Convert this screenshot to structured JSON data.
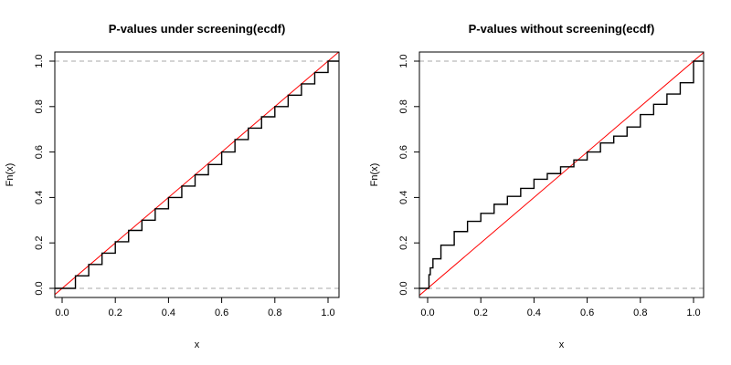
{
  "chart_data": [
    {
      "type": "line",
      "title": "P-values under screening(ecdf)",
      "xlabel": "x",
      "ylabel": "Fn(x)",
      "xlim": [
        0,
        1
      ],
      "ylim": [
        0,
        1
      ],
      "xticks": [
        "0.0",
        "0.2",
        "0.4",
        "0.6",
        "0.8",
        "1.0"
      ],
      "yticks": [
        "0.0",
        "0.2",
        "0.4",
        "0.6",
        "0.8",
        "1.0"
      ],
      "reference_lines": [
        {
          "kind": "horizontal",
          "y": 0,
          "style": "dashed",
          "color": "#aaaaaa"
        },
        {
          "kind": "horizontal",
          "y": 1,
          "style": "dashed",
          "color": "#aaaaaa"
        },
        {
          "kind": "diagonal",
          "slope": 1,
          "intercept": 0,
          "color": "#ff0000"
        }
      ],
      "series": [
        {
          "type": "step",
          "color": "#000000",
          "x": [
            0.0,
            0.05,
            0.1,
            0.15,
            0.2,
            0.25,
            0.3,
            0.35,
            0.4,
            0.45,
            0.5,
            0.55,
            0.6,
            0.65,
            0.7,
            0.75,
            0.8,
            0.85,
            0.9,
            0.95,
            1.0
          ],
          "y": [
            0.0,
            0.055,
            0.105,
            0.155,
            0.205,
            0.255,
            0.3,
            0.35,
            0.4,
            0.45,
            0.5,
            0.545,
            0.6,
            0.655,
            0.705,
            0.755,
            0.8,
            0.85,
            0.9,
            0.95,
            1.0
          ]
        }
      ]
    },
    {
      "type": "line",
      "title": "P-values without screening(ecdf)",
      "xlabel": "x",
      "ylabel": "Fn(x)",
      "xlim": [
        0,
        1
      ],
      "ylim": [
        0,
        1
      ],
      "xticks": [
        "0.0",
        "0.2",
        "0.4",
        "0.6",
        "0.8",
        "1.0"
      ],
      "yticks": [
        "0.0",
        "0.2",
        "0.4",
        "0.6",
        "0.8",
        "1.0"
      ],
      "reference_lines": [
        {
          "kind": "horizontal",
          "y": 0,
          "style": "dashed",
          "color": "#aaaaaa"
        },
        {
          "kind": "horizontal",
          "y": 1,
          "style": "dashed",
          "color": "#aaaaaa"
        },
        {
          "kind": "diagonal",
          "slope": 1,
          "intercept": 0,
          "color": "#ff0000"
        }
      ],
      "series": [
        {
          "type": "step",
          "color": "#000000",
          "x": [
            0.0,
            0.005,
            0.01,
            0.02,
            0.05,
            0.1,
            0.15,
            0.2,
            0.25,
            0.3,
            0.35,
            0.4,
            0.45,
            0.5,
            0.55,
            0.6,
            0.65,
            0.7,
            0.75,
            0.8,
            0.85,
            0.9,
            0.95,
            1.0
          ],
          "y": [
            0.0,
            0.06,
            0.09,
            0.13,
            0.19,
            0.25,
            0.295,
            0.33,
            0.37,
            0.405,
            0.44,
            0.48,
            0.505,
            0.535,
            0.565,
            0.6,
            0.64,
            0.67,
            0.71,
            0.765,
            0.81,
            0.855,
            0.905,
            1.0
          ]
        }
      ]
    }
  ]
}
